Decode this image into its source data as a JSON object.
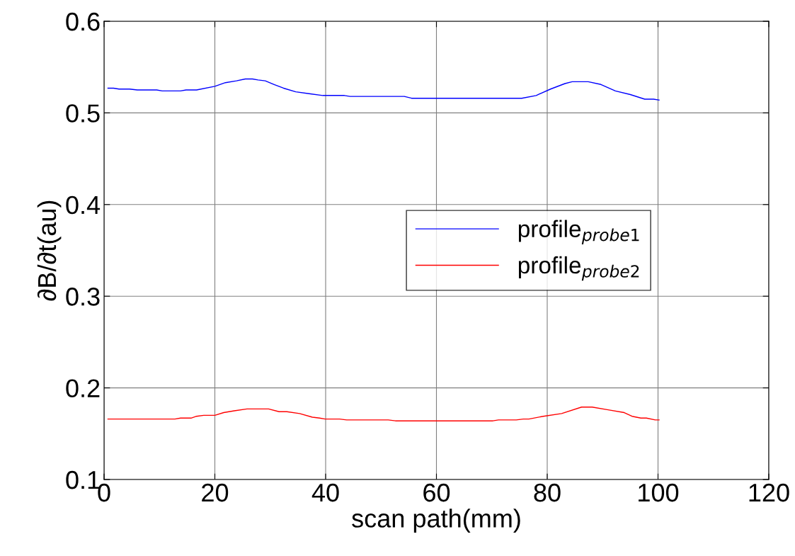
{
  "chart_data": {
    "type": "line",
    "xlabel": "scan path(mm)",
    "ylabel": "∂B/∂t(au)",
    "xlim": [
      0,
      120
    ],
    "ylim": [
      0.1,
      0.6
    ],
    "xticks": [
      0,
      20,
      40,
      60,
      80,
      100,
      120
    ],
    "yticks": [
      0.1,
      0.2,
      0.3,
      0.4,
      0.5,
      0.6
    ],
    "grid": true,
    "legend": "right",
    "line_style": "solid",
    "marker": "none",
    "series": [
      {
        "name": "profile$_{probe1}$",
        "color": "#0000ff",
        "x": [
          0.7,
          1.7,
          2.7,
          4.6,
          6.0,
          9.5,
          10.5,
          13.8,
          14.8,
          16.7,
          20.0,
          21.9,
          23.9,
          25.5,
          26.8,
          27.8,
          29.1,
          30.7,
          32.4,
          34.6,
          37.0,
          39.5,
          43.4,
          44.4,
          54.2,
          55.5,
          75.4,
          78.0,
          80.6,
          83.2,
          84.5,
          87.4,
          89.7,
          92.3,
          95.0,
          97.6,
          99.2,
          100.2
        ],
        "values": [
          0.527,
          0.527,
          0.526,
          0.526,
          0.525,
          0.525,
          0.524,
          0.524,
          0.525,
          0.525,
          0.529,
          0.533,
          0.535,
          0.537,
          0.537,
          0.536,
          0.535,
          0.531,
          0.527,
          0.523,
          0.521,
          0.519,
          0.519,
          0.518,
          0.518,
          0.516,
          0.516,
          0.519,
          0.526,
          0.532,
          0.534,
          0.534,
          0.531,
          0.524,
          0.52,
          0.515,
          0.515,
          0.514
        ]
      },
      {
        "name": "profile$_{probe2}$",
        "color": "#ff0000",
        "x": [
          0.7,
          12.8,
          13.8,
          15.7,
          16.7,
          18.0,
          20.0,
          21.6,
          23.5,
          25.8,
          29.7,
          31.6,
          33.0,
          35.3,
          37.6,
          38.9,
          39.9,
          42.5,
          43.8,
          51.3,
          52.6,
          70.2,
          71.2,
          74.4,
          75.7,
          76.7,
          79.3,
          82.6,
          86.2,
          88.1,
          91.0,
          93.9,
          95.3,
          96.9,
          97.9,
          99.5,
          100.2
        ],
        "values": [
          0.166,
          0.166,
          0.167,
          0.167,
          0.169,
          0.17,
          0.17,
          0.173,
          0.175,
          0.177,
          0.177,
          0.174,
          0.174,
          0.172,
          0.168,
          0.167,
          0.166,
          0.166,
          0.165,
          0.165,
          0.164,
          0.164,
          0.165,
          0.165,
          0.166,
          0.166,
          0.169,
          0.172,
          0.179,
          0.179,
          0.176,
          0.173,
          0.169,
          0.167,
          0.167,
          0.165,
          0.165
        ]
      }
    ]
  }
}
